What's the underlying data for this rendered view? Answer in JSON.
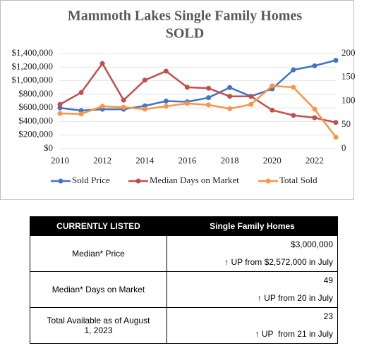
{
  "chart_data": {
    "type": "line",
    "title": "Mammoth Lakes Single Family Homes",
    "subtitle": "SOLD",
    "x": [
      2010,
      2011,
      2012,
      2013,
      2014,
      2015,
      2016,
      2017,
      2018,
      2019,
      2020,
      2021,
      2022,
      2023
    ],
    "xlim": [
      2010,
      2023
    ],
    "xticks": [
      2010,
      2012,
      2014,
      2016,
      2018,
      2020,
      2022
    ],
    "ylim": [
      0,
      1400000
    ],
    "yticks": [
      {
        "value": 0,
        "label": "$0"
      },
      {
        "value": 200000,
        "label": "$200,000"
      },
      {
        "value": 400000,
        "label": "$400,000"
      },
      {
        "value": 600000,
        "label": "$600,000"
      },
      {
        "value": 800000,
        "label": "$800,000"
      },
      {
        "value": 1000000,
        "label": "$1,000,000"
      },
      {
        "value": 1200000,
        "label": "$1,200,000"
      },
      {
        "value": 1400000,
        "label": "$1,400,000"
      }
    ],
    "y2lim": [
      0,
      200
    ],
    "y2ticks": [
      0,
      50,
      100,
      150,
      200
    ],
    "grid": true,
    "legend": "bottom",
    "series": [
      {
        "name": "Sold Price",
        "color": "#4472c4",
        "values": [
          600000,
          560000,
          580000,
          580000,
          630000,
          700000,
          690000,
          750000,
          900000,
          770000,
          880000,
          1160000,
          1220000,
          1300000
        ]
      },
      {
        "name": "Median Days on Market",
        "color": "#c0504d",
        "axis": "y2",
        "values": [
          93,
          118,
          179,
          102,
          144,
          163,
          129,
          127,
          110,
          110,
          81,
          70,
          65,
          55
        ]
      },
      {
        "name": "Total Sold",
        "color": "#f79646",
        "axis": "y2",
        "values": [
          74,
          73,
          89,
          87,
          83,
          89,
          95,
          92,
          84,
          93,
          132,
          129,
          83,
          24
        ]
      }
    ]
  },
  "table": {
    "header": [
      "CURRENTLY LISTED",
      "Single Family Homes"
    ],
    "rows": [
      [
        "Median* Price",
        "$3,000,000",
        "↑ UP from $2,572,000 in July"
      ],
      [
        "Median* Days on Market",
        "49",
        "↑ UP from 20 in July"
      ],
      [
        "Total Available as of August 1, 2023",
        "23",
        "↑ UP  from 21 in July"
      ]
    ]
  }
}
